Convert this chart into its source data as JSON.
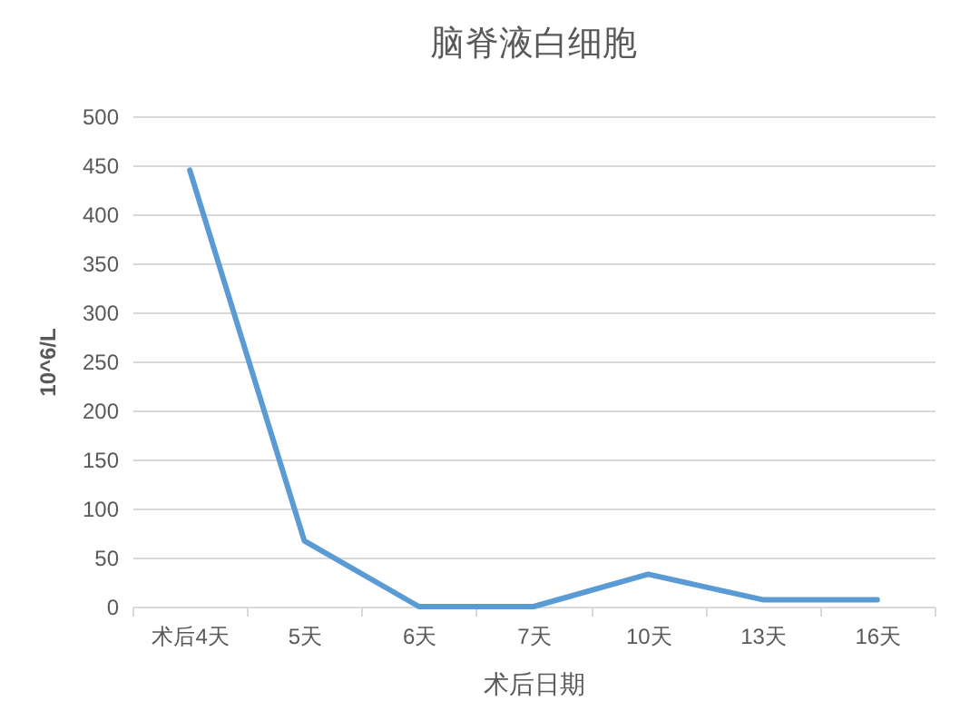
{
  "chart_data": {
    "type": "line",
    "title": "脑脊液白细胞",
    "xlabel": "术后日期",
    "ylabel": "10^6/L",
    "categories": [
      "术后4天",
      "5天",
      "6天",
      "7天",
      "10天",
      "13天",
      "16天"
    ],
    "series": [
      {
        "color": "#5b9bd5",
        "values": [
          445,
          67,
          0,
          0,
          33,
          7,
          7
        ]
      }
    ],
    "ylim": [
      0,
      500
    ],
    "yticks": [
      0,
      50,
      100,
      150,
      200,
      250,
      300,
      350,
      400,
      450,
      500
    ],
    "grid": "y",
    "marker": "none",
    "line_style": "solid"
  }
}
